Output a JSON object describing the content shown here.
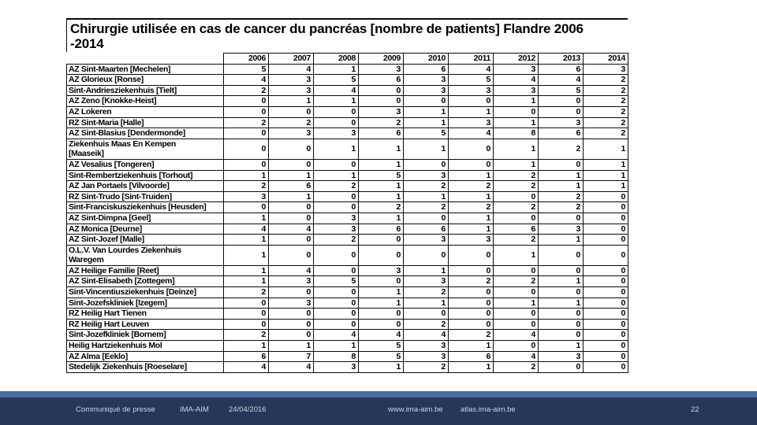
{
  "title": {
    "line1": "Chirurgie utilisée en cas de cancer du pancréas [nombre de patients] Flandre 2006",
    "line2": "-2014"
  },
  "table": {
    "year_headers": [
      "2006",
      "2007",
      "2008",
      "2009",
      "2010",
      "2011",
      "2012",
      "2013",
      "2014"
    ],
    "rows": [
      {
        "label": "AZ Sint-Maarten [Mechelen]",
        "values": [
          5,
          4,
          1,
          3,
          6,
          4,
          3,
          6,
          3
        ]
      },
      {
        "label": "AZ Glorieux [Ronse]",
        "values": [
          4,
          3,
          5,
          6,
          3,
          5,
          4,
          4,
          2
        ]
      },
      {
        "label": "Sint-Andriesziekenhuis [Tielt]",
        "values": [
          2,
          3,
          4,
          0,
          3,
          3,
          3,
          5,
          2
        ]
      },
      {
        "label": "AZ Zeno [Knokke-Heist]",
        "values": [
          0,
          1,
          1,
          0,
          0,
          0,
          1,
          0,
          2
        ]
      },
      {
        "label": "AZ Lokeren",
        "values": [
          0,
          0,
          0,
          3,
          1,
          1,
          0,
          0,
          2
        ]
      },
      {
        "label": "RZ Sint-Maria [Halle]",
        "values": [
          2,
          2,
          0,
          2,
          1,
          3,
          1,
          3,
          2
        ]
      },
      {
        "label": "AZ Sint-Blasius [Dendermonde]",
        "values": [
          0,
          3,
          3,
          6,
          5,
          4,
          8,
          6,
          2
        ]
      },
      {
        "label": "Ziekenhuis Maas En Kempen\n[Maaseik]",
        "values": [
          0,
          0,
          1,
          1,
          1,
          0,
          1,
          2,
          1
        ]
      },
      {
        "label": "AZ Vesalius [Tongeren]",
        "values": [
          0,
          0,
          0,
          1,
          0,
          0,
          1,
          0,
          1
        ]
      },
      {
        "label": "Sint-Rembertziekenhuis [Torhout]",
        "values": [
          1,
          1,
          1,
          5,
          3,
          1,
          2,
          1,
          1
        ]
      },
      {
        "label": "AZ Jan Portaels [Vilvoorde]",
        "values": [
          2,
          6,
          2,
          1,
          2,
          2,
          2,
          1,
          1
        ]
      },
      {
        "label": "RZ Sint-Trudo [Sint-Truiden]",
        "values": [
          3,
          1,
          0,
          1,
          1,
          1,
          0,
          2,
          0
        ]
      },
      {
        "label": "Sint-Franciskusziekenhuis [Heusden]",
        "values": [
          0,
          0,
          0,
          2,
          2,
          2,
          2,
          2,
          0
        ]
      },
      {
        "label": "AZ  Sint-Dimpna [Geel]",
        "values": [
          1,
          0,
          3,
          1,
          0,
          1,
          0,
          0,
          0
        ]
      },
      {
        "label": "AZ Monica [Deurne]",
        "values": [
          4,
          4,
          3,
          6,
          6,
          1,
          6,
          3,
          0
        ]
      },
      {
        "label": "AZ Sint-Jozef [Malle]",
        "values": [
          1,
          0,
          2,
          0,
          3,
          3,
          2,
          1,
          0
        ]
      },
      {
        "label": "O.L.V. Van Lourdes Ziekenhuis\nWaregem",
        "values": [
          1,
          0,
          0,
          0,
          0,
          0,
          1,
          0,
          0
        ]
      },
      {
        "label": "AZ Heilige Familie [Reet]",
        "values": [
          1,
          4,
          0,
          3,
          1,
          0,
          0,
          0,
          0
        ]
      },
      {
        "label": "AZ Sint-Elisabeth [Zottegem]",
        "values": [
          1,
          3,
          5,
          0,
          3,
          2,
          2,
          1,
          0
        ]
      },
      {
        "label": "Sint-Vincentiusziekenhuis [Deinze]",
        "values": [
          2,
          0,
          0,
          1,
          2,
          0,
          0,
          0,
          0
        ]
      },
      {
        "label": "Sint-Jozefskliniek [Izegem]",
        "values": [
          0,
          3,
          0,
          1,
          1,
          0,
          1,
          1,
          0
        ]
      },
      {
        "label": "RZ Heilig Hart Tienen",
        "values": [
          0,
          0,
          0,
          0,
          0,
          0,
          0,
          0,
          0
        ]
      },
      {
        "label": "RZ Heilig Hart Leuven",
        "values": [
          0,
          0,
          0,
          0,
          2,
          0,
          0,
          0,
          0
        ]
      },
      {
        "label": "Sint-Jozefkliniek [Bornem]",
        "values": [
          2,
          0,
          4,
          4,
          4,
          2,
          4,
          0,
          0
        ]
      },
      {
        "label": "Heilig Hartziekenhuis Mol",
        "values": [
          1,
          1,
          1,
          5,
          3,
          1,
          0,
          1,
          0
        ]
      },
      {
        "label": "AZ Alma [Eeklo]",
        "values": [
          6,
          7,
          8,
          5,
          3,
          6,
          4,
          3,
          0
        ]
      },
      {
        "label": "Stedelijk Ziekenhuis [Roeselare]",
        "values": [
          4,
          4,
          3,
          1,
          2,
          1,
          2,
          0,
          0
        ]
      }
    ]
  },
  "footer": {
    "doc_type": "Communiqué de presse",
    "org": "IMA-AIM",
    "date": "24/04/2016",
    "url1": "www.ima-aim.be",
    "url2": "atlas.ima-aim.be",
    "page_number": "22"
  },
  "colors": {
    "stripe": "#4a6ca6",
    "footer_bg": "#27375a",
    "footer_text": "#ccd3de",
    "border": "#0a0a0a"
  }
}
